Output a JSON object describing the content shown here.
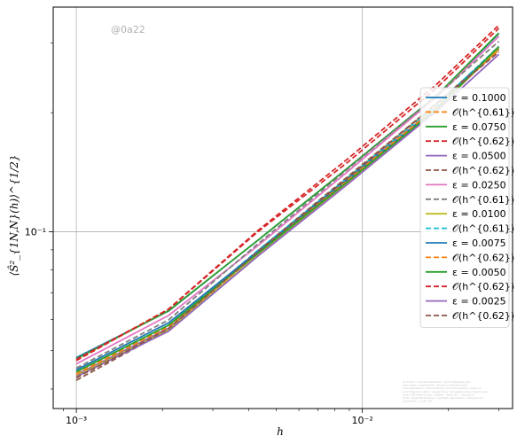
{
  "watermark": "@0a22",
  "footnote": [
    "for trials = 'GeoRandomWalk', random[shape] [ex]",
    "with dates 'yyyy/mm/dd' 'stored:runs[ident] [ex]",
    "and realizations: 'IndirectStudy' recorded:system, multi-run",
    "and 'trajectory data', 'saved=true' 'simulated/experiments' [ex]",
    "main: 'NK-Hamiltonian' 'Walker', 'Mass 42', 'Aspiration'",
    "from: 'pluginParameters': synthetic generation, reference ex",
    "statement, 'in cell: 40'"
  ],
  "chart_data": {
    "type": "line",
    "xscale": "log",
    "yscale": "log",
    "xlabel": "h",
    "ylabel": "⟨Ŝ²_{1N,N}(h)⟩^{1/2}",
    "xlim": [
      0.00083,
      0.0335
    ],
    "ylim": [
      0.0357,
      0.37
    ],
    "x_ticks": [
      {
        "value": 0.001,
        "label": "10⁻³"
      },
      {
        "value": 0.01,
        "label": "10⁻²"
      }
    ],
    "y_ticks": [
      {
        "value": 0.1,
        "label": "10⁻¹"
      }
    ],
    "grid": true,
    "legend_position": "right",
    "x": [
      0.001,
      0.0021,
      0.0043,
      0.0089,
      0.0183,
      0.03
    ],
    "series": [
      {
        "name": "ε = 0.1000",
        "style": "solid",
        "color": "#1f77b4",
        "values": [
          0.048,
          0.063,
          0.095,
          0.145,
          0.222,
          0.317
        ]
      },
      {
        "name": "𝒪(h^{0.61})",
        "style": "dashed",
        "color": "#ff7f0e",
        "values": [
          0.0431,
          0.0567,
          0.0884,
          0.137,
          0.212,
          0.289
        ]
      },
      {
        "name": "ε = 0.0750",
        "style": "solid",
        "color": "#2ca02c",
        "values": [
          0.0477,
          0.0631,
          0.095,
          0.145,
          0.222,
          0.318
        ]
      },
      {
        "name": "𝒪(h^{0.62})",
        "style": "dashed",
        "color": "#d62728",
        "values": [
          0.0475,
          0.0636,
          0.0998,
          0.15,
          0.232,
          0.327
        ]
      },
      {
        "name": "ε = 0.0500",
        "style": "solid",
        "color": "#9467bd",
        "values": [
          0.0435,
          0.057,
          0.089,
          0.135,
          0.205,
          0.291
        ]
      },
      {
        "name": "𝒪(h^{0.62})",
        "style": "dashed",
        "color": "#8c564b",
        "values": [
          0.0421,
          0.0565,
          0.0893,
          0.138,
          0.212,
          0.29
        ]
      },
      {
        "name": "ε = 0.0250",
        "style": "solid",
        "color": "#e377c2",
        "values": [
          0.0463,
          0.0614,
          0.092,
          0.142,
          0.22,
          0.312
        ]
      },
      {
        "name": "𝒪(h^{0.61})",
        "style": "dashed",
        "color": "#7f7f7f",
        "values": [
          0.0452,
          0.0598,
          0.093,
          0.144,
          0.222,
          0.303
        ]
      },
      {
        "name": "ε = 0.0100",
        "style": "solid",
        "color": "#bcbd22",
        "values": [
          0.0432,
          0.0565,
          0.087,
          0.133,
          0.205,
          0.292
        ]
      },
      {
        "name": "𝒪(h^{0.61})",
        "style": "dashed",
        "color": "#17becf",
        "values": [
          0.0442,
          0.058,
          0.0895,
          0.137,
          0.21,
          0.294
        ]
      },
      {
        "name": "ε = 0.0075",
        "style": "solid",
        "color": "#1f77b4",
        "values": [
          0.0447,
          0.0588,
          0.089,
          0.136,
          0.207,
          0.294
        ]
      },
      {
        "name": "𝒪(h^{0.62})",
        "style": "dashed",
        "color": "#ff7f0e",
        "values": [
          0.0437,
          0.0575,
          0.088,
          0.135,
          0.208,
          0.288
        ]
      },
      {
        "name": "ε = 0.0050",
        "style": "solid",
        "color": "#2ca02c",
        "values": [
          0.0442,
          0.058,
          0.088,
          0.134,
          0.205,
          0.294
        ]
      },
      {
        "name": "𝒪(h^{0.62})",
        "style": "dashed",
        "color": "#d62728",
        "values": [
          0.0472,
          0.0637,
          0.1005,
          0.153,
          0.237,
          0.333
        ]
      },
      {
        "name": "ε = 0.0025",
        "style": "solid",
        "color": "#9467bd",
        "values": [
          0.043,
          0.056,
          0.0866,
          0.132,
          0.203,
          0.281
        ]
      },
      {
        "name": "𝒪(h^{0.62})",
        "style": "dashed",
        "color": "#8c564b",
        "values": [
          0.0427,
          0.0568,
          0.0888,
          0.137,
          0.212,
          0.285
        ]
      }
    ]
  }
}
